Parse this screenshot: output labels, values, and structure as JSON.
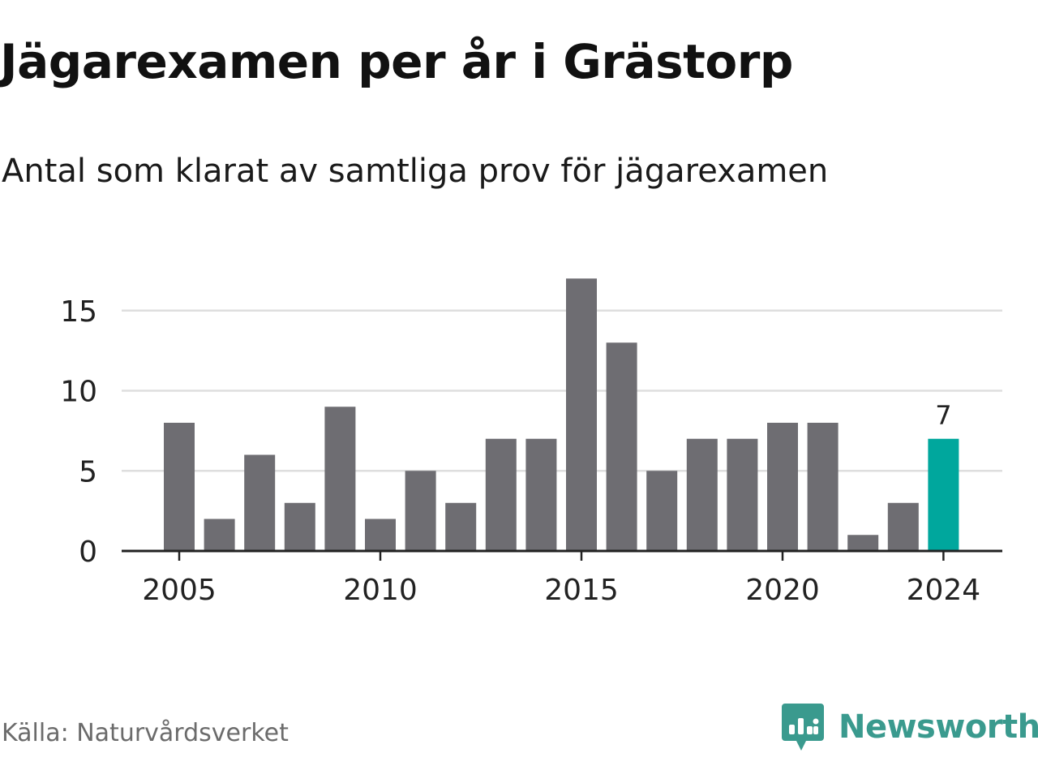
{
  "title": "Jägarexamen per år i Grästorp",
  "subtitle": "Antal som klarat av samtliga prov för jägarexamen",
  "source": "Källa: Naturvårdsverket",
  "brand": {
    "name": "Newsworthy",
    "icon": "newsworthy-logo-icon",
    "color": "#3a9a8e"
  },
  "colors": {
    "bar": "#6e6d72",
    "highlight": "#00a79d",
    "grid": "#dedede",
    "axis": "#222222",
    "tick_text": "#222222"
  },
  "chart_data": {
    "type": "bar",
    "categories": [
      "2005",
      "2006",
      "2007",
      "2008",
      "2009",
      "2010",
      "2011",
      "2012",
      "2013",
      "2014",
      "2015",
      "2016",
      "2017",
      "2018",
      "2019",
      "2020",
      "2021",
      "2022",
      "2023",
      "2024"
    ],
    "values": [
      8,
      2,
      6,
      3,
      9,
      2,
      5,
      3,
      7,
      7,
      17,
      13,
      5,
      7,
      7,
      8,
      8,
      1,
      3,
      7
    ],
    "highlight_index": 19,
    "data_labels": [
      {
        "index": 19,
        "text": "7"
      }
    ],
    "x_tick_labels": [
      "2005",
      "2010",
      "2015",
      "2020",
      "2024"
    ],
    "y_ticks": [
      0,
      5,
      10,
      15
    ],
    "y_tick_labels": [
      "0",
      "5",
      "10",
      "15"
    ],
    "ylim": [
      0,
      17
    ],
    "grid": true,
    "xlabel": "",
    "ylabel": ""
  }
}
